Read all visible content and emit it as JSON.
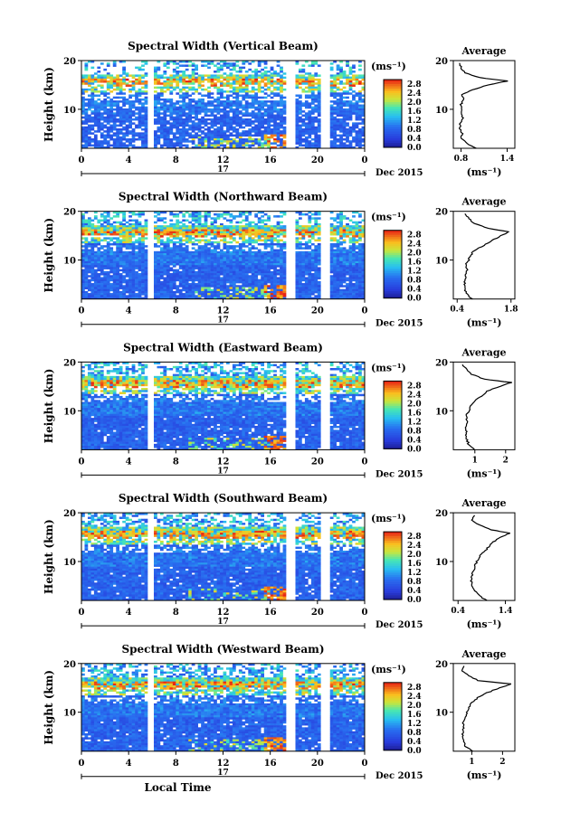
{
  "chart_data": [
    {
      "type": "heatmap",
      "title": "Spectral Width (Vertical Beam)",
      "ylabel": "Height (km)",
      "xlim": [
        0,
        24
      ],
      "ylim": [
        2,
        20
      ],
      "x_ticks": [
        "0",
        "4",
        "8",
        "12",
        "16",
        "20",
        "0"
      ],
      "y_ticks": [
        "10",
        "20"
      ],
      "date_marker": "17",
      "date_label": "Dec 2015",
      "data_gaps_hours": [
        [
          5.6,
          6.1
        ],
        [
          17.4,
          18.0
        ],
        [
          20.4,
          21.0
        ]
      ],
      "colorbar": {
        "unit": "(ms⁻¹)",
        "range": [
          0.0,
          3.0
        ],
        "ticks": [
          "2.8",
          "2.4",
          "2.0",
          "1.6",
          "1.2",
          "0.8",
          "0.4",
          "0.0"
        ]
      },
      "average_profile": {
        "title": "Average",
        "xlabel": "(ms⁻¹)",
        "x_ticks": [
          "0.8",
          "1.4"
        ],
        "xlim": [
          0.7,
          1.5
        ],
        "y_ticks": [
          "10",
          "20"
        ],
        "height_km": [
          2,
          3,
          4,
          5,
          6,
          7,
          8,
          9,
          10,
          11,
          12,
          13,
          14,
          15,
          15.8,
          16.5,
          17.5,
          18.5,
          19.5
        ],
        "value": [
          1.0,
          0.88,
          0.8,
          0.82,
          0.79,
          0.78,
          0.83,
          0.8,
          0.82,
          0.8,
          0.84,
          0.8,
          0.95,
          1.15,
          1.4,
          1.05,
          0.85,
          0.8,
          0.78
        ]
      }
    },
    {
      "type": "heatmap",
      "title": "Spectral Width (Northward Beam)",
      "ylabel": "Height (km)",
      "xlim": [
        0,
        24
      ],
      "ylim": [
        2,
        20
      ],
      "x_ticks": [
        "0",
        "4",
        "8",
        "12",
        "16",
        "20",
        "0"
      ],
      "y_ticks": [
        "10",
        "20"
      ],
      "date_marker": "17",
      "date_label": "Dec 2015",
      "data_gaps_hours": [
        [
          5.6,
          6.1
        ],
        [
          17.4,
          18.0
        ],
        [
          20.4,
          21.0
        ]
      ],
      "colorbar": {
        "unit": "(ms⁻¹)",
        "range": [
          0.0,
          3.0
        ],
        "ticks": [
          "2.8",
          "2.4",
          "2.0",
          "1.6",
          "1.2",
          "0.8",
          "0.4",
          "0.0"
        ]
      },
      "average_profile": {
        "title": "Average",
        "xlabel": "(ms⁻¹)",
        "x_ticks": [
          "0.4",
          "1.8"
        ],
        "xlim": [
          0.3,
          1.9
        ],
        "y_ticks": [
          "10",
          "20"
        ],
        "height_km": [
          2,
          3,
          4,
          5,
          6,
          7,
          8,
          9,
          10,
          11,
          12,
          13,
          14,
          15,
          15.8,
          16.5,
          17.5,
          18.5,
          19.5
        ],
        "value": [
          0.8,
          0.65,
          0.6,
          0.58,
          0.62,
          0.6,
          0.65,
          0.62,
          0.7,
          0.75,
          0.85,
          1.1,
          1.3,
          1.55,
          1.75,
          1.2,
          0.85,
          0.7,
          0.6
        ]
      }
    },
    {
      "type": "heatmap",
      "title": "Spectral Width (Eastward Beam)",
      "ylabel": "Height (km)",
      "xlim": [
        0,
        24
      ],
      "ylim": [
        2,
        20
      ],
      "x_ticks": [
        "0",
        "4",
        "8",
        "12",
        "16",
        "20",
        "0"
      ],
      "y_ticks": [
        "10",
        "20"
      ],
      "date_marker": "17",
      "date_label": "Dec 2015",
      "data_gaps_hours": [
        [
          5.6,
          6.1
        ],
        [
          17.4,
          18.0
        ],
        [
          20.4,
          21.0
        ]
      ],
      "colorbar": {
        "unit": "(ms⁻¹)",
        "range": [
          0.0,
          3.0
        ],
        "ticks": [
          "2.8",
          "2.4",
          "2.0",
          "1.6",
          "1.2",
          "0.8",
          "0.4",
          "0.0"
        ]
      },
      "average_profile": {
        "title": "Average",
        "xlabel": "(ms⁻¹)",
        "x_ticks": [
          "1",
          "2"
        ],
        "xlim": [
          0.3,
          2.3
        ],
        "y_ticks": [
          "10",
          "20"
        ],
        "height_km": [
          2,
          3,
          4,
          5,
          6,
          7,
          8,
          9,
          10,
          11,
          12,
          13,
          14,
          15,
          15.8,
          16.5,
          17.5,
          18.5,
          19.5
        ],
        "value": [
          1.0,
          0.8,
          0.75,
          0.7,
          0.72,
          0.7,
          0.75,
          0.72,
          0.8,
          0.85,
          1.0,
          1.2,
          1.4,
          1.8,
          2.2,
          1.3,
          0.9,
          0.75,
          0.6
        ]
      }
    },
    {
      "type": "heatmap",
      "title": "Spectral Width (Southward Beam)",
      "ylabel": "Height (km)",
      "xlim": [
        0,
        24
      ],
      "ylim": [
        2,
        20
      ],
      "x_ticks": [
        "0",
        "4",
        "8",
        "12",
        "16",
        "20",
        "0"
      ],
      "y_ticks": [
        "10",
        "20"
      ],
      "date_marker": "17",
      "date_label": "Dec 2015",
      "data_gaps_hours": [
        [
          5.6,
          6.1
        ],
        [
          17.4,
          18.0
        ],
        [
          20.4,
          21.0
        ]
      ],
      "colorbar": {
        "unit": "(ms⁻¹)",
        "range": [
          0.0,
          3.0
        ],
        "ticks": [
          "2.8",
          "2.4",
          "2.0",
          "1.6",
          "1.2",
          "0.8",
          "0.4",
          "0.0"
        ]
      },
      "average_profile": {
        "title": "Average",
        "xlabel": "(ms⁻¹)",
        "x_ticks": [
          "0.4",
          "1.4"
        ],
        "xlim": [
          0.3,
          1.6
        ],
        "y_ticks": [
          "10",
          "20"
        ],
        "height_km": [
          2,
          3,
          4,
          5,
          6,
          7,
          8,
          9,
          10,
          11,
          12,
          13,
          14,
          15,
          15.8,
          16.5,
          17.5,
          18.5,
          19.5
        ],
        "value": [
          1.0,
          0.85,
          0.75,
          0.7,
          0.68,
          0.7,
          0.72,
          0.75,
          0.8,
          0.85,
          0.95,
          1.05,
          1.15,
          1.3,
          1.5,
          1.1,
          0.85,
          0.7,
          0.75
        ]
      }
    },
    {
      "type": "heatmap",
      "title": "Spectral Width (Westward Beam)",
      "ylabel": "Height (km)",
      "xlabel": "Local Time",
      "xlim": [
        0,
        24
      ],
      "ylim": [
        2,
        20
      ],
      "x_ticks": [
        "0",
        "4",
        "8",
        "12",
        "16",
        "20",
        "0"
      ],
      "y_ticks": [
        "10",
        "20"
      ],
      "date_marker": "17",
      "date_label": "Dec 2015",
      "data_gaps_hours": [
        [
          5.6,
          6.1
        ],
        [
          17.4,
          18.0
        ],
        [
          20.4,
          21.0
        ]
      ],
      "colorbar": {
        "unit": "(ms⁻¹)",
        "range": [
          0.0,
          3.0
        ],
        "ticks": [
          "2.8",
          "2.4",
          "2.0",
          "1.6",
          "1.2",
          "0.8",
          "0.4",
          "0.0"
        ]
      },
      "average_profile": {
        "title": "Average",
        "xlabel": "(ms⁻¹)",
        "x_ticks": [
          "1",
          "2"
        ],
        "xlim": [
          0.4,
          2.4
        ],
        "y_ticks": [
          "10",
          "20"
        ],
        "height_km": [
          2,
          3,
          4,
          5,
          6,
          7,
          8,
          9,
          10,
          11,
          12,
          13,
          14,
          15,
          15.8,
          16.5,
          17.5,
          18.5,
          19.5
        ],
        "value": [
          1.0,
          0.8,
          0.75,
          0.72,
          0.7,
          0.75,
          0.72,
          0.78,
          0.85,
          0.9,
          1.0,
          1.2,
          1.5,
          1.9,
          2.3,
          1.2,
          0.9,
          0.7,
          0.75
        ]
      }
    }
  ]
}
